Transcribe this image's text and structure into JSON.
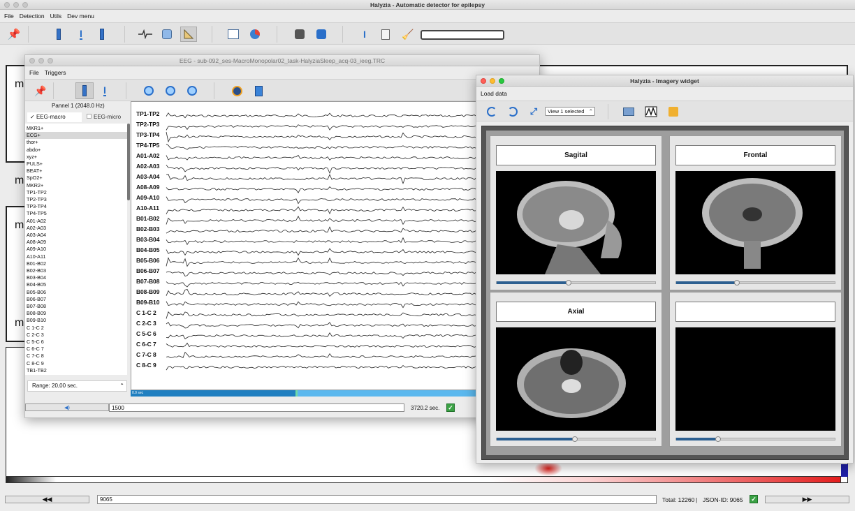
{
  "main": {
    "title": "Halyzia - Automatic detector for epilepsy",
    "menu": [
      "File",
      "Detection",
      "Utils",
      "Dev menu"
    ],
    "left_labels": [
      "m",
      "m",
      "m",
      "m"
    ],
    "status": {
      "prev_label": "◀◀",
      "next_label": "▶▶",
      "position": "9065",
      "total": "Total: 12260",
      "json_id": "JSON-ID: 9065"
    }
  },
  "eeg": {
    "title": "EEG - sub-092_ses-MacroMonopolar02_task-HalyziaSleep_acq-03_ieeg.TRC",
    "menu": [
      "File",
      "Triggers"
    ],
    "panel_title": "Pannel 1 (2048.0 Hz)",
    "tabs": [
      "EEG-macro",
      "EEG-micro"
    ],
    "channels": [
      "MKR1+",
      "ECG+",
      "thor+",
      "abdo+",
      "xyz+",
      "PULS+",
      "BEAT+",
      "SpO2+",
      "MKR2+",
      "TP1-TP2",
      "TP2-TP3",
      "TP3-TP4",
      "TP4-TP5",
      "A01-A02",
      "A02-A03",
      "A03-A04",
      "A08-A09",
      "A09-A10",
      "A10-A11",
      "B01-B02",
      "B02-B03",
      "B03-B04",
      "B04-B05",
      "B05-B06",
      "B06-B07",
      "B07-B08",
      "B08-B09",
      "B09-B10",
      "C 1-C 2",
      "C 2-C 3",
      "C 5-C 6",
      "C 6-C 7",
      "C 7-C 8",
      "C 8-C 9",
      "TB1-TB2"
    ],
    "trace_labels": [
      "TP1-TP2",
      "TP2-TP3",
      "TP3-TP4",
      "TP4-TP5",
      "A01-A02",
      "A02-A03",
      "A03-A04",
      "A08-A09",
      "A09-A10",
      "A10-A11",
      "B01-B02",
      "B02-B03",
      "B03-B04",
      "B04-B05",
      "B05-B06",
      "B06-B07",
      "B07-B08",
      "B08-B09",
      "B09-B10",
      "C 1-C 2",
      "C 2-C 3",
      "C 5-C 6",
      "C 6-C 7",
      "C 7-C 8",
      "C 8-C 9"
    ],
    "range_label": "Range: 20,00 sec.",
    "time_axis_label": "0.0 sec",
    "position_value": "1500",
    "duration": "3720.2 sec.",
    "play_icon": "◀)"
  },
  "imagery": {
    "title": "Halyzia - Imagery widget",
    "menu": "Load data",
    "view_select": "View 1 selected",
    "views": [
      {
        "label": "Sagital",
        "slider": 0.45
      },
      {
        "label": "Frontal",
        "slider": 0.38
      },
      {
        "label": "Axial",
        "slider": 0.49
      },
      {
        "label": "",
        "slider": 0.26
      }
    ]
  },
  "colors": {
    "accent": "#2a6fc9",
    "progress": "#1f7fc0",
    "heat_end": "#e41e1e"
  }
}
